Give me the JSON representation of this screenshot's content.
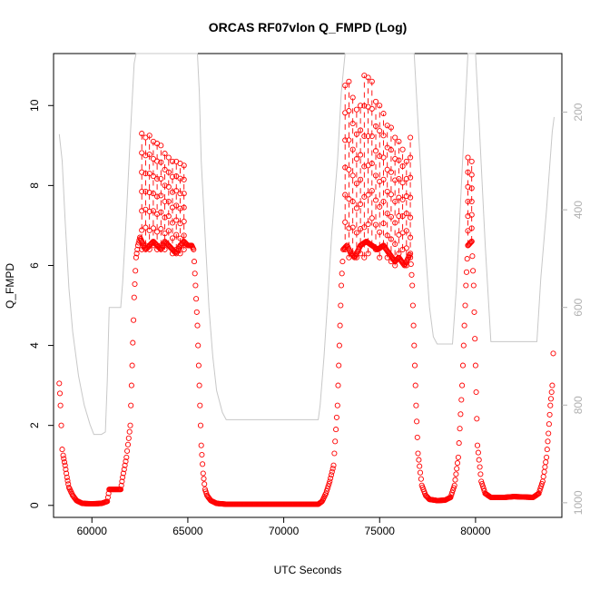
{
  "chart_data": {
    "type": "scatter",
    "title": "ORCAS RF07vlon Q_FMPD (Log)",
    "xlabel": "UTC Seconds",
    "ylabel": "Q_FMPD",
    "xlim": [
      58000,
      84500
    ],
    "ylim": [
      -0.3,
      11.3
    ],
    "x_ticks": [
      60000,
      65000,
      70000,
      75000,
      80000
    ],
    "y_ticks": [
      0,
      2,
      4,
      6,
      8,
      10
    ],
    "right_axis": {
      "ticks": [
        200,
        400,
        600,
        800,
        1000
      ],
      "range_top": 80,
      "range_bottom": 1030,
      "color": "#b0b0b0",
      "inverted": true
    },
    "grid": false,
    "series": [
      {
        "style": "points",
        "color": "#ff0000",
        "marker": "open-circle",
        "points": [
          [
            58300,
            3.05
          ],
          [
            58330,
            2.8
          ],
          [
            58360,
            2.5
          ],
          [
            58400,
            2.0
          ],
          [
            58450,
            1.4
          ],
          [
            58500,
            1.25
          ],
          [
            58600,
            1.0
          ],
          [
            58700,
            0.7
          ],
          [
            58800,
            0.45
          ],
          [
            59000,
            0.25
          ],
          [
            59200,
            0.12
          ],
          [
            59500,
            0.05
          ],
          [
            60000,
            0.04
          ],
          [
            60500,
            0.05
          ],
          [
            60800,
            0.1
          ],
          [
            60900,
            0.4
          ],
          [
            61200,
            0.4
          ],
          [
            61500,
            0.4
          ],
          [
            61600,
            0.7
          ],
          [
            61800,
            1.2
          ],
          [
            62000,
            2.0
          ],
          [
            62100,
            3.5
          ],
          [
            62200,
            5.2
          ],
          [
            62300,
            6.2
          ],
          [
            62400,
            6.5
          ],
          [
            62500,
            6.7
          ],
          [
            62600,
            6.6
          ],
          [
            62800,
            6.4
          ],
          [
            63000,
            6.5
          ],
          [
            63200,
            6.6
          ],
          [
            63400,
            6.5
          ],
          [
            63600,
            6.4
          ],
          [
            63800,
            6.6
          ],
          [
            64000,
            6.5
          ],
          [
            64200,
            6.4
          ],
          [
            64400,
            6.3
          ],
          [
            64600,
            6.5
          ],
          [
            64800,
            6.6
          ],
          [
            65000,
            6.5
          ],
          [
            65200,
            6.5
          ],
          [
            65300,
            6.4
          ],
          [
            65400,
            5.5
          ],
          [
            65500,
            4.5
          ],
          [
            65600,
            3.0
          ],
          [
            65700,
            1.5
          ],
          [
            65800,
            0.8
          ],
          [
            65900,
            0.4
          ],
          [
            66000,
            0.25
          ],
          [
            66200,
            0.12
          ],
          [
            66500,
            0.05
          ],
          [
            67000,
            0.03
          ],
          [
            68000,
            0.03
          ],
          [
            69000,
            0.03
          ],
          [
            70000,
            0.03
          ],
          [
            71000,
            0.03
          ],
          [
            71800,
            0.03
          ],
          [
            72000,
            0.1
          ],
          [
            72200,
            0.3
          ],
          [
            72400,
            0.6
          ],
          [
            72600,
            1.0
          ],
          [
            72800,
            2.5
          ],
          [
            72900,
            4.0
          ],
          [
            73000,
            5.5
          ],
          [
            73100,
            6.4
          ],
          [
            73300,
            6.5
          ],
          [
            73500,
            6.3
          ],
          [
            73700,
            6.2
          ],
          [
            74000,
            6.5
          ],
          [
            74300,
            6.6
          ],
          [
            74600,
            6.5
          ],
          [
            74900,
            6.4
          ],
          [
            75200,
            6.5
          ],
          [
            75500,
            6.3
          ],
          [
            75800,
            6.1
          ],
          [
            76000,
            6.2
          ],
          [
            76300,
            6.0
          ],
          [
            76600,
            6.3
          ],
          [
            76700,
            5.5
          ],
          [
            76800,
            4.0
          ],
          [
            76900,
            2.5
          ],
          [
            77000,
            1.3
          ],
          [
            77200,
            0.5
          ],
          [
            77400,
            0.25
          ],
          [
            77600,
            0.15
          ],
          [
            78000,
            0.12
          ],
          [
            78400,
            0.13
          ],
          [
            78700,
            0.2
          ],
          [
            78900,
            0.5
          ],
          [
            79100,
            1.2
          ],
          [
            79300,
            3.0
          ],
          [
            79500,
            5.5
          ],
          [
            79600,
            6.5
          ],
          [
            79800,
            6.6
          ],
          [
            79900,
            5.5
          ],
          [
            80000,
            3.5
          ],
          [
            80100,
            1.5
          ],
          [
            80300,
            0.6
          ],
          [
            80500,
            0.3
          ],
          [
            80800,
            0.2
          ],
          [
            81500,
            0.2
          ],
          [
            82000,
            0.22
          ],
          [
            82500,
            0.21
          ],
          [
            83000,
            0.2
          ],
          [
            83300,
            0.3
          ],
          [
            83500,
            0.6
          ],
          [
            83700,
            1.2
          ],
          [
            83800,
            1.8
          ],
          [
            83900,
            2.5
          ],
          [
            84000,
            3.0
          ],
          [
            84050,
            3.8
          ]
        ]
      },
      {
        "style": "vertical-lines",
        "color": "#ff0000",
        "marker": "open-circle",
        "segments": [
          [
            62600,
            6.4,
            9.3
          ],
          [
            62800,
            6.5,
            9.2
          ],
          [
            63000,
            6.4,
            9.25
          ],
          [
            63200,
            6.5,
            9.1
          ],
          [
            63400,
            6.4,
            9.05
          ],
          [
            63600,
            6.5,
            9.0
          ],
          [
            63800,
            6.4,
            8.8
          ],
          [
            64000,
            6.5,
            8.7
          ],
          [
            64200,
            6.3,
            8.6
          ],
          [
            64400,
            6.4,
            8.6
          ],
          [
            64600,
            6.3,
            8.55
          ],
          [
            64800,
            6.4,
            8.5
          ],
          [
            73200,
            6.4,
            10.5
          ],
          [
            73400,
            6.2,
            10.6
          ],
          [
            73600,
            6.3,
            10.2
          ],
          [
            73800,
            6.2,
            9.9
          ],
          [
            74000,
            6.3,
            10.0
          ],
          [
            74200,
            6.2,
            10.75
          ],
          [
            74400,
            6.3,
            10.7
          ],
          [
            74600,
            6.5,
            10.6
          ],
          [
            74800,
            6.4,
            10.1
          ],
          [
            75000,
            6.2,
            10.0
          ],
          [
            75200,
            6.5,
            9.8
          ],
          [
            75400,
            6.2,
            9.5
          ],
          [
            75600,
            6.1,
            9.45
          ],
          [
            75800,
            6.0,
            9.2
          ],
          [
            76000,
            6.3,
            9.1
          ],
          [
            76200,
            6.4,
            8.9
          ],
          [
            76400,
            6.0,
            8.6
          ],
          [
            76600,
            6.2,
            9.2
          ],
          [
            79600,
            6.5,
            8.7
          ],
          [
            79800,
            6.6,
            8.6
          ]
        ]
      },
      {
        "style": "line",
        "color": "#c8c8c8",
        "axis": "right",
        "points": [
          [
            58300,
            245
          ],
          [
            58450,
            300
          ],
          [
            58600,
            420
          ],
          [
            58800,
            560
          ],
          [
            59000,
            650
          ],
          [
            59300,
            740
          ],
          [
            59600,
            800
          ],
          [
            59900,
            840
          ],
          [
            60100,
            860
          ],
          [
            60500,
            860
          ],
          [
            60700,
            855
          ],
          [
            60800,
            750
          ],
          [
            60900,
            600
          ],
          [
            61000,
            600
          ],
          [
            61500,
            600
          ],
          [
            61600,
            550
          ],
          [
            61800,
            410
          ],
          [
            62000,
            250
          ],
          [
            62200,
            100
          ],
          [
            62300,
            80
          ],
          [
            62600,
            80
          ],
          [
            65500,
            80
          ],
          [
            65600,
            160
          ],
          [
            65700,
            300
          ],
          [
            65900,
            450
          ],
          [
            66100,
            600
          ],
          [
            66300,
            700
          ],
          [
            66500,
            770
          ],
          [
            66800,
            815
          ],
          [
            67000,
            830
          ],
          [
            68000,
            830
          ],
          [
            70000,
            830
          ],
          [
            71800,
            830
          ],
          [
            71900,
            800
          ],
          [
            72100,
            700
          ],
          [
            72300,
            580
          ],
          [
            72500,
            450
          ],
          [
            72800,
            300
          ],
          [
            73000,
            160
          ],
          [
            73200,
            80
          ],
          [
            76800,
            80
          ],
          [
            77000,
            220
          ],
          [
            77300,
            430
          ],
          [
            77600,
            600
          ],
          [
            77800,
            660
          ],
          [
            78000,
            675
          ],
          [
            78800,
            675
          ],
          [
            79000,
            560
          ],
          [
            79200,
            400
          ],
          [
            79400,
            240
          ],
          [
            79600,
            80
          ],
          [
            80000,
            80
          ],
          [
            80200,
            230
          ],
          [
            80500,
            470
          ],
          [
            80800,
            670
          ],
          [
            81000,
            670
          ],
          [
            83200,
            670
          ],
          [
            83400,
            540
          ],
          [
            83700,
            400
          ],
          [
            84000,
            240
          ],
          [
            84100,
            210
          ]
        ]
      }
    ]
  }
}
